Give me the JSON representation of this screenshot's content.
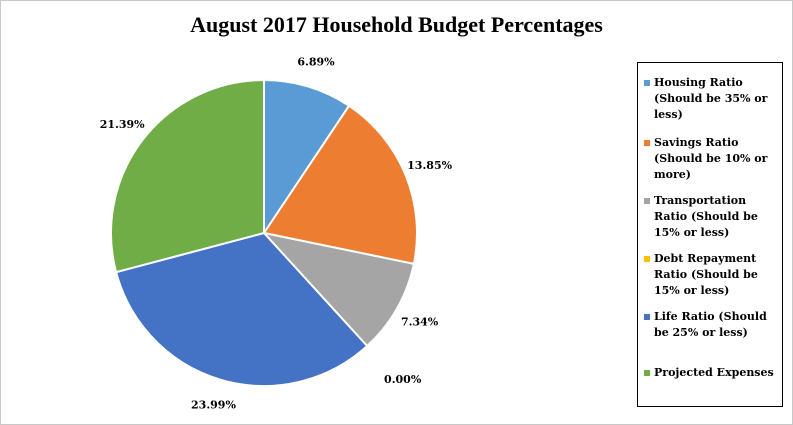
{
  "chart_data": {
    "type": "pie",
    "title": "August 2017 Household Budget Percentages",
    "legend_position": "right",
    "slices": [
      {
        "label": "Housing Ratio (Should be 35% or less)",
        "value": 6.89,
        "data_label": "6.89%",
        "color": "#5b9bd5"
      },
      {
        "label": "Savings Ratio (Should be 10% or more)",
        "value": 13.85,
        "data_label": "13.85%",
        "color": "#ed7d31"
      },
      {
        "label": "Transportation Ratio (Should be 15% or less)",
        "value": 7.34,
        "data_label": "7.34%",
        "color": "#a5a5a5"
      },
      {
        "label": "Debt Repayment Ratio (Should be 15% or less)",
        "value": 0.0,
        "data_label": "0.00%",
        "color": "#ffc000"
      },
      {
        "label": "Life Ratio (Should be 25% or less)",
        "value": 23.99,
        "data_label": "23.99%",
        "color": "#4472c4"
      },
      {
        "label": "Projected Expenses",
        "value": 21.39,
        "data_label": "21.39%",
        "color": "#70ad47"
      }
    ]
  }
}
